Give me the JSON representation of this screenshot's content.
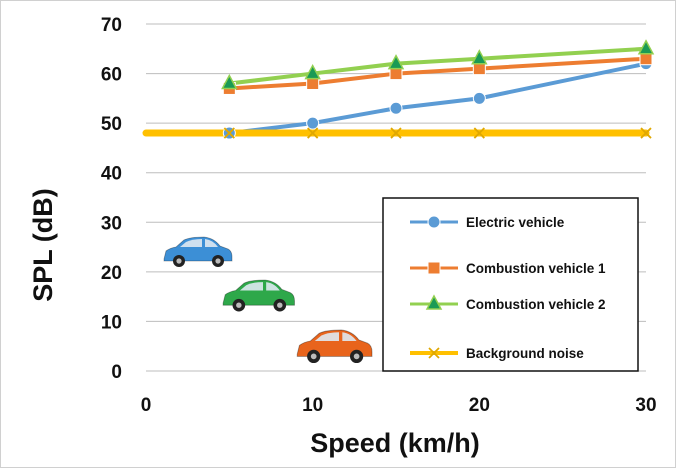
{
  "chart_data": {
    "type": "line",
    "xlabel": "Speed (km/h)",
    "ylabel": "SPL (dB)",
    "xlim": [
      0,
      30
    ],
    "ylim": [
      0,
      70
    ],
    "xticks": [
      "0",
      "10",
      "20",
      "30"
    ],
    "yticks": [
      "0",
      "10",
      "20",
      "30",
      "40",
      "50",
      "60",
      "70"
    ],
    "grid": "horizontal",
    "legend_position": "bottom-right",
    "series": [
      {
        "name": "Electric vehicle",
        "color": "#5b9bd5",
        "marker": "circle",
        "x": [
          5,
          10,
          15,
          20,
          30
        ],
        "y": [
          48,
          50,
          53,
          55,
          62
        ]
      },
      {
        "name": "Combustion vehicle 1",
        "color": "#ed7d31",
        "marker": "square",
        "x": [
          5,
          10,
          15,
          20,
          30
        ],
        "y": [
          57,
          58,
          60,
          61,
          63
        ]
      },
      {
        "name": "Combustion vehicle 2",
        "color": "#92d050",
        "marker": "triangle",
        "x": [
          5,
          10,
          15,
          20,
          30
        ],
        "y": [
          58,
          60,
          62,
          63,
          65
        ]
      },
      {
        "name": "Background noise",
        "color": "#ffc000",
        "marker": "x",
        "x": [
          0,
          5,
          10,
          15,
          20,
          30
        ],
        "y": [
          48,
          48,
          48,
          48,
          48,
          48
        ]
      }
    ],
    "decorations": [
      {
        "icon": "car-icon",
        "color": "#3c8fd6"
      },
      {
        "icon": "car-icon",
        "color": "#2ea84a"
      },
      {
        "icon": "car-icon",
        "color": "#e8641c"
      }
    ]
  }
}
